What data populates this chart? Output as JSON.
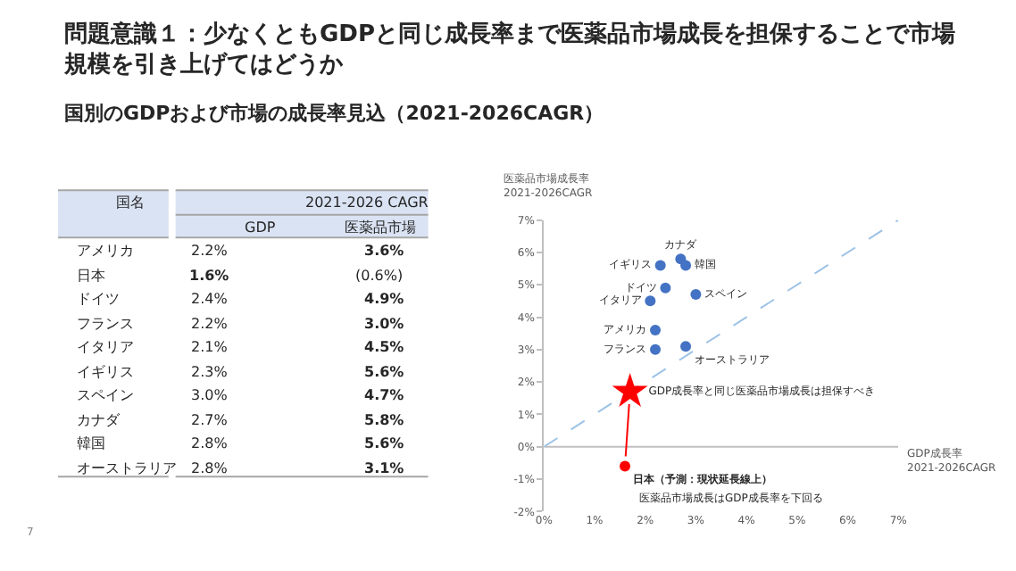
{
  "chart_data": [
    {
      "type": "other",
      "title": "問題意識１：少なくともGDPと同じ成長率まで医薬品市場成長を担保することで市場規模を引き上げてはどうか",
      "subtitle": "国別のGDPおよび市場の成長率見込（2021-2026CAGR）",
      "xlabel": "国名",
      "legend_title": "2021-2026 CAGR",
      "categories": [
        "アメリカ",
        "日本",
        "ドイツ",
        "フランス",
        "イタリア",
        "イギリス",
        "スペイン",
        "カナダ",
        "韓国",
        "オーストラリア"
      ],
      "series": [
        {
          "name": "GDP",
          "values": [
            2.2,
            1.6,
            2.4,
            2.2,
            2.1,
            2.3,
            3.0,
            2.7,
            2.8,
            2.8
          ],
          "value_labels": [
            "2.2%",
            "1.6%",
            "2.4%",
            "2.2%",
            "2.1%",
            "2.3%",
            "3.0%",
            "2.7%",
            "2.8%",
            "2.8%"
          ]
        },
        {
          "name": "医薬品市場",
          "values": [
            3.6,
            -0.6,
            4.9,
            3.0,
            4.5,
            5.6,
            4.7,
            5.8,
            5.6,
            3.1
          ],
          "value_labels": [
            "3.6%",
            "(0.6%)",
            "4.9%",
            "3.0%",
            "4.5%",
            "5.6%",
            "4.7%",
            "5.8%",
            "5.6%",
            "3.1%"
          ]
        }
      ],
      "annotations": [
        "7"
      ]
    },
    {
      "type": "scatter",
      "xlabel": "GDP成長率\n2021-2026CAGR",
      "ylabel": "医薬品市場成長率\n2021-2026CAGR",
      "grid": false,
      "xlim": [
        0,
        7
      ],
      "ylim": [
        -2,
        7
      ],
      "ref_lines": [
        {
          "axis": "y",
          "value": 0,
          "color": "#bfbfbf"
        }
      ],
      "xticks": [
        {
          "value": 0,
          "label": "0%"
        },
        {
          "value": 1,
          "label": "1%"
        },
        {
          "value": 2,
          "label": "2%"
        },
        {
          "value": 3,
          "label": "3%"
        },
        {
          "value": 4,
          "label": "4%"
        },
        {
          "value": 5,
          "label": "5%"
        },
        {
          "value": 6,
          "label": "6%"
        },
        {
          "value": 7,
          "label": "7%"
        }
      ],
      "yticks": [
        {
          "value": -2,
          "label": "-2%"
        },
        {
          "value": -1,
          "label": "-1%"
        },
        {
          "value": 0,
          "label": "0%"
        },
        {
          "value": 1,
          "label": "1%"
        },
        {
          "value": 2,
          "label": "2%"
        },
        {
          "value": 3,
          "label": "3%"
        },
        {
          "value": 4,
          "label": "4%"
        },
        {
          "value": 5,
          "label": "5%"
        },
        {
          "value": 6,
          "label": "6%"
        },
        {
          "value": 7,
          "label": "7%"
        }
      ],
      "series": [
        {
          "type": "line",
          "x": [
            0,
            7
          ],
          "values": [
            0,
            7
          ],
          "color": "#9dc3e6",
          "line_style": "dashed",
          "marker": "none"
        },
        {
          "name": "アメリカ",
          "x": [
            2.2
          ],
          "values": [
            3.6
          ],
          "color": "#4472c4",
          "marker": "circle"
        },
        {
          "name": "日本（予測：現状延長線上）",
          "x": [
            1.6
          ],
          "values": [
            -0.6
          ],
          "color": "#ff0000",
          "marker": "circle"
        },
        {
          "name": "ドイツ",
          "x": [
            2.4
          ],
          "values": [
            4.9
          ],
          "color": "#4472c4",
          "marker": "circle"
        },
        {
          "name": "フランス",
          "x": [
            2.2
          ],
          "values": [
            3.0
          ],
          "color": "#4472c4",
          "marker": "circle"
        },
        {
          "name": "イタリア",
          "x": [
            2.1
          ],
          "values": [
            4.5
          ],
          "color": "#4472c4",
          "marker": "circle"
        },
        {
          "name": "イギリス",
          "x": [
            2.3
          ],
          "values": [
            5.6
          ],
          "color": "#4472c4",
          "marker": "circle"
        },
        {
          "name": "スペイン",
          "x": [
            3.0
          ],
          "values": [
            4.7
          ],
          "color": "#4472c4",
          "marker": "circle"
        },
        {
          "name": "カナダ",
          "x": [
            2.7
          ],
          "values": [
            5.8
          ],
          "color": "#4472c4",
          "marker": "circle"
        },
        {
          "name": "韓国",
          "x": [
            2.8
          ],
          "values": [
            5.6
          ],
          "color": "#4472c4",
          "marker": "circle"
        },
        {
          "name": "オーストラリア",
          "x": [
            2.8
          ],
          "values": [
            3.1
          ],
          "color": "#4472c4",
          "marker": "circle"
        },
        {
          "name": "GDP成長率と同じ医薬品市場成長は担保すべき",
          "x": [
            1.7
          ],
          "values": [
            1.7
          ],
          "color": "#ff0000",
          "marker": "star"
        }
      ],
      "annotations": [
        "医薬品市場成長はGDP成長率を下回る"
      ]
    }
  ]
}
